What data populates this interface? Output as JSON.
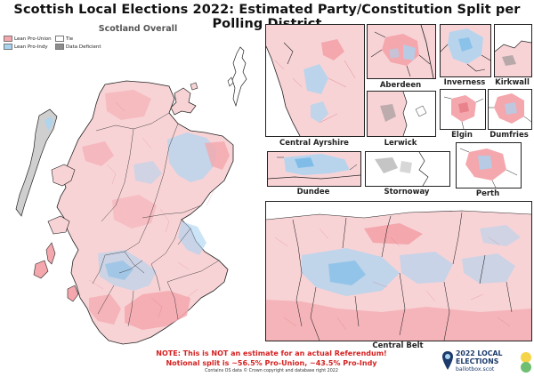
{
  "title": "Scottish Local Elections 2022: Estimated Party/Constitution Split per Polling District",
  "overall_label": "Scotland Overall",
  "legend": {
    "items": [
      {
        "label": "Lean Pro-Union",
        "color": "#f4a7ad"
      },
      {
        "label": "Lean Pro-Indy",
        "color": "#a8d4f2"
      },
      {
        "label": "Tie",
        "color": "#ffffff"
      },
      {
        "label": "Data Deficient",
        "color": "#8c8c8c"
      }
    ]
  },
  "colors": {
    "union": "#f4a7ad",
    "union_dark": "#e9838b",
    "indy": "#a8d4f2",
    "indy_dark": "#7fbde8",
    "border": "#222222",
    "note": "#d62020",
    "brand": "#1c3b6b"
  },
  "insets": {
    "central_ayrshire": "Central Ayrshire",
    "aberdeen": "Aberdeen",
    "inverness": "Inverness",
    "kirkwall": "Kirkwall",
    "lerwick": "Lerwick",
    "elgin": "Elgin",
    "dumfries": "Dumfries",
    "dundee": "Dundee",
    "stornoway": "Stornoway",
    "perth": "Perth",
    "central_belt": "Central Belt"
  },
  "notes": {
    "line1": "NOTE: This is NOT an estimate for an actual Referendum!",
    "line2": "Notional split is ~56.5% Pro-Union, ~43.5% Pro-Indy",
    "credit": "Contains OS data © Crown copyright and database right 2022"
  },
  "brand": {
    "line1": "2022 LOCAL",
    "line2": "ELECTIONS",
    "line3": "ballotbox.scot"
  }
}
